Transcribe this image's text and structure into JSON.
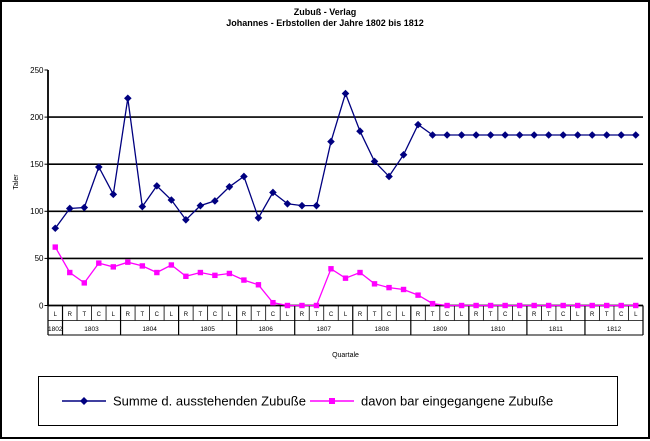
{
  "window": {
    "background": "#ffffff",
    "border_color": "#000000"
  },
  "legend": {
    "entries": [
      {
        "label": "Summe d. ausstehenden Zubuße",
        "marker": "diamond",
        "color": "#000080"
      },
      {
        "label": "davon bar eingegangene Zubuße",
        "marker": "square",
        "color": "#FF00FF"
      }
    ]
  },
  "chart_data": {
    "type": "line",
    "title": "Zubuß - Verlag",
    "subtitle": "Johannes - Erbstollen der Jahre 1802 bis 1812",
    "xlabel": "Quartale",
    "ylabel": "Taler",
    "ylim": [
      0,
      250
    ],
    "yticks": [
      0,
      50,
      100,
      150,
      200,
      250
    ],
    "grid": true,
    "legend_position": "bottom",
    "quarter_letters": [
      "L",
      "R",
      "T",
      "C",
      "L",
      "R",
      "T",
      "C",
      "L",
      "R",
      "T",
      "C",
      "L",
      "R",
      "T",
      "C",
      "L",
      "R",
      "T",
      "C",
      "L",
      "R",
      "T",
      "C",
      "L",
      "R",
      "T",
      "C",
      "L",
      "R",
      "T",
      "C",
      "L",
      "R",
      "T",
      "C",
      "L",
      "R",
      "T",
      "C",
      "L"
    ],
    "year_groups": [
      {
        "label": "1802",
        "span": 1
      },
      {
        "label": "1803",
        "span": 4
      },
      {
        "label": "1804",
        "span": 4
      },
      {
        "label": "1805",
        "span": 4
      },
      {
        "label": "1806",
        "span": 4
      },
      {
        "label": "1807",
        "span": 4
      },
      {
        "label": "1808",
        "span": 4
      },
      {
        "label": "1809",
        "span": 4
      },
      {
        "label": "1810",
        "span": 4
      },
      {
        "label": "1811",
        "span": 4
      },
      {
        "label": "1812",
        "span": 4
      }
    ],
    "series": [
      {
        "name": "Summe d. ausstehenden Zubuße",
        "color": "#000080",
        "marker": "diamond",
        "values": [
          82,
          103,
          104,
          147,
          118,
          220,
          105,
          127,
          112,
          91,
          106,
          111,
          126,
          137,
          93,
          120,
          108,
          106,
          106,
          174,
          225,
          185,
          153,
          137,
          160,
          192,
          181,
          181,
          181,
          181,
          181,
          181,
          181,
          181,
          181,
          181,
          181,
          181,
          181,
          181,
          181
        ]
      },
      {
        "name": "davon bar eingegangene Zubuße",
        "color": "#FF00FF",
        "marker": "square",
        "values": [
          62,
          35,
          24,
          45,
          41,
          46,
          42,
          35,
          43,
          31,
          35,
          32,
          34,
          27,
          22,
          3,
          0,
          0,
          0,
          39,
          29,
          35,
          23,
          19,
          17,
          11,
          2,
          0,
          0,
          0,
          0,
          0,
          0,
          0,
          0,
          0,
          0,
          0,
          0,
          0,
          0
        ]
      }
    ]
  }
}
